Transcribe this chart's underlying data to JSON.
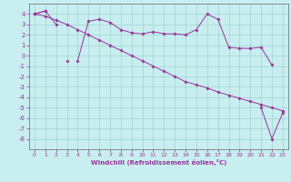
{
  "xlabel": "Windchill (Refroidissement éolien,°C)",
  "line_color": "#993399",
  "bg_color": "#c8eef0",
  "grid_color": "#99cccc",
  "ylim": [
    -9,
    5
  ],
  "xlim": [
    -0.5,
    23.5
  ],
  "yticks": [
    4,
    3,
    2,
    1,
    0,
    -1,
    -2,
    -3,
    -4,
    -5,
    -6,
    -7,
    -8
  ],
  "xticks": [
    0,
    1,
    2,
    3,
    4,
    5,
    6,
    7,
    8,
    9,
    10,
    11,
    12,
    13,
    14,
    15,
    16,
    17,
    18,
    19,
    20,
    21,
    22,
    23
  ],
  "series1": [
    4.0,
    4.3,
    3.0,
    null,
    -0.5,
    3.3,
    3.5,
    3.2,
    2.5,
    2.2,
    2.1,
    2.3,
    2.1,
    2.1,
    2.0,
    2.5,
    4.0,
    3.5,
    0.8,
    0.7,
    0.7,
    0.8,
    -0.9,
    null
  ],
  "series2": [
    4.0,
    3.8,
    3.4,
    3.0,
    2.5,
    2.0,
    1.5,
    1.0,
    0.5,
    0.0,
    -0.5,
    -1.0,
    -1.5,
    -2.0,
    -2.5,
    -2.8,
    -3.1,
    -3.5,
    -3.8,
    -4.1,
    -4.4,
    -4.7,
    -5.0,
    -5.3
  ],
  "series3": [
    4.0,
    4.3,
    null,
    -0.5,
    null,
    null,
    null,
    null,
    null,
    null,
    null,
    null,
    null,
    null,
    null,
    null,
    null,
    null,
    null,
    null,
    null,
    -5.0,
    -8.0,
    -5.5
  ]
}
